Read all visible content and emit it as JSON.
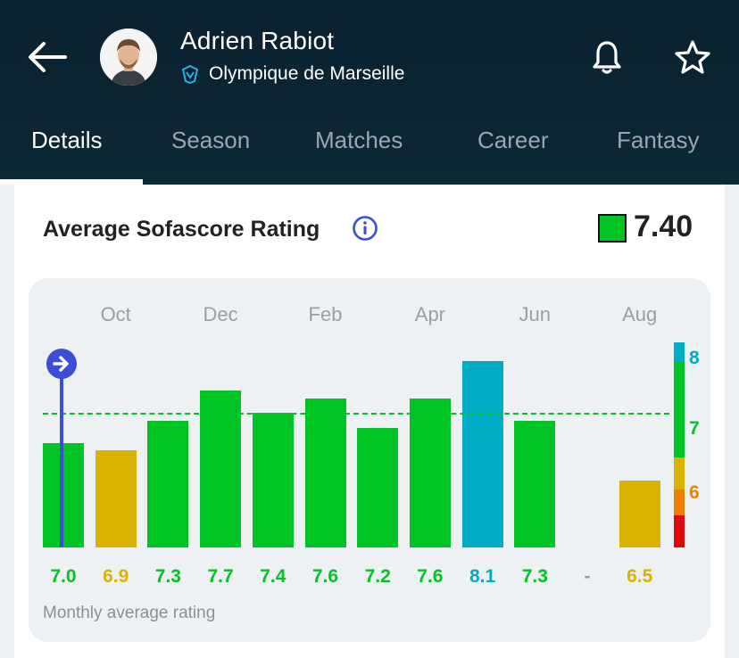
{
  "header": {
    "player_name": "Adrien Rabiot",
    "club_name": "Olympique de Marseille",
    "icons": {
      "back": "arrow-left-icon",
      "bell": "bell-icon",
      "star": "star-icon",
      "club": "club-crest-icon"
    }
  },
  "tabs": [
    {
      "label": "Details",
      "active": true
    },
    {
      "label": "Season",
      "active": false
    },
    {
      "label": "Matches",
      "active": false
    },
    {
      "label": "Career",
      "active": false
    },
    {
      "label": "Fantasy",
      "active": false
    }
  ],
  "card": {
    "title": "Average Sofascore Rating",
    "overall_rating": "7.40",
    "footer": "Monthly average rating"
  },
  "colors": {
    "header_bg": "#0b2533",
    "green": "#00c424",
    "yellow": "#d9b300",
    "blue": "#00adc4",
    "orange": "#f07f00",
    "red": "#dd0c0c",
    "marker": "#3a4fd6"
  },
  "chart_data": {
    "type": "bar",
    "title": "Average Sofascore Rating",
    "month_labels": [
      "Oct",
      "Dec",
      "Feb",
      "Apr",
      "Jun",
      "Aug"
    ],
    "values": [
      7.0,
      6.9,
      7.3,
      7.7,
      7.4,
      7.6,
      7.2,
      7.6,
      8.1,
      7.3,
      null,
      6.5
    ],
    "value_labels": [
      "7.0",
      "6.9",
      "7.3",
      "7.7",
      "7.4",
      "7.6",
      "7.2",
      "7.6",
      "8.1",
      "7.3",
      "-",
      "6.5"
    ],
    "average": 7.4,
    "scale_labels": [
      "8",
      "7",
      "6"
    ],
    "ylim": [
      5.6,
      8.3
    ],
    "grid": false,
    "xlabel": "Monthly average rating"
  }
}
